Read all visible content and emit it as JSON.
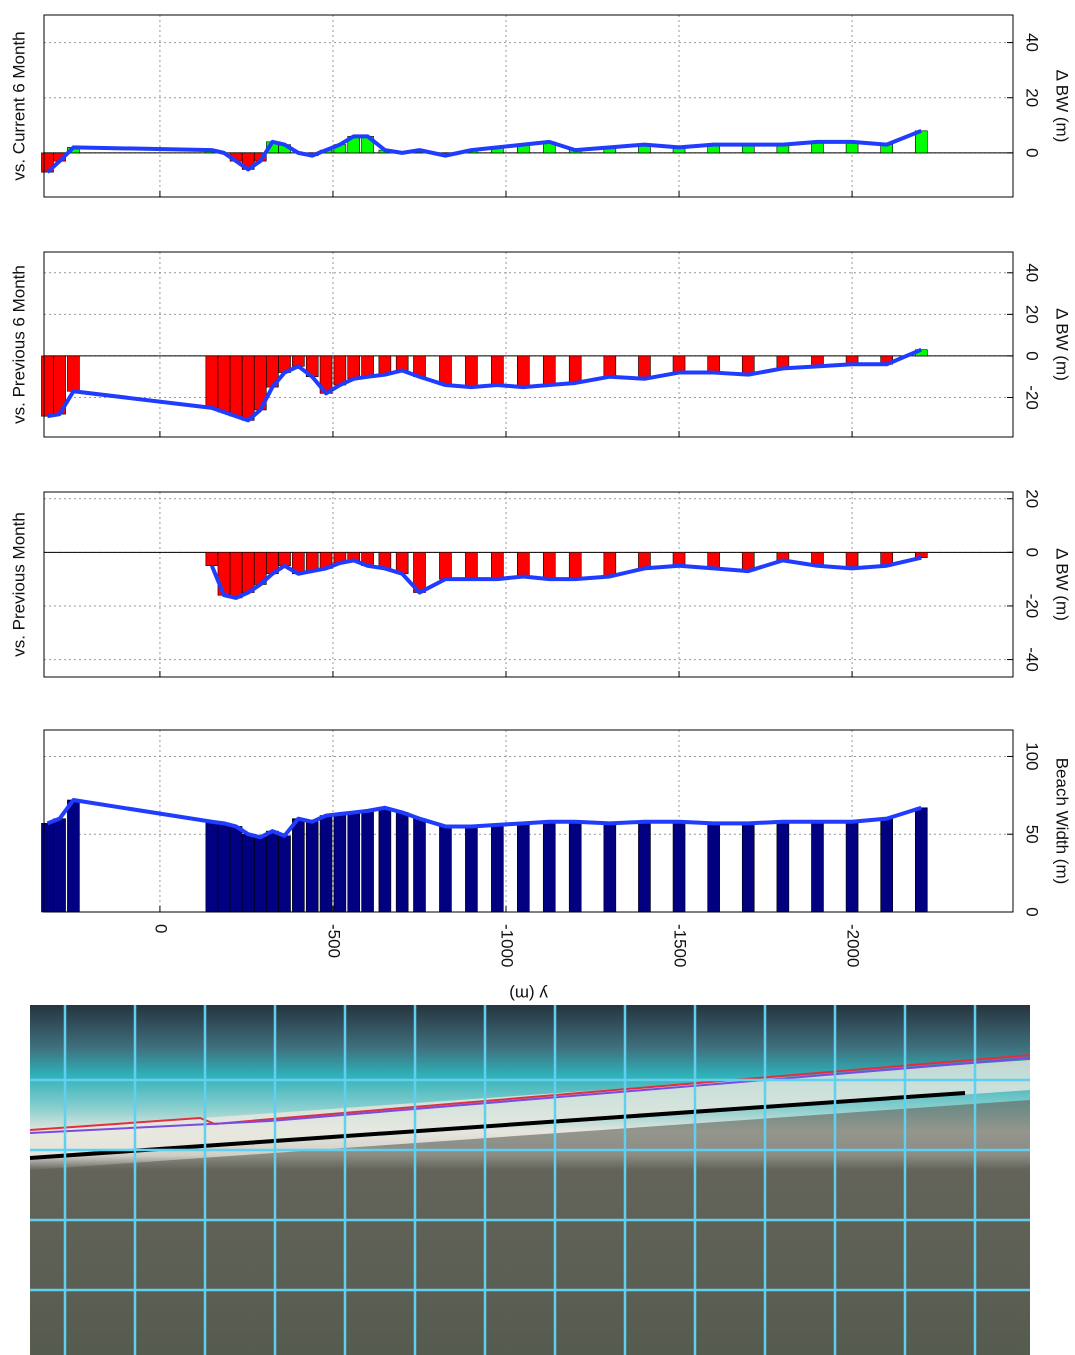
{
  "chart_data": [
    {
      "type": "bar",
      "title": "vs. Current 6 Month",
      "ylabel": "Δ BW (m)",
      "x": [
        325,
        290,
        250,
        -150,
        -185,
        -220,
        -255,
        -290,
        -325,
        -360,
        -400,
        -440,
        -480,
        -520,
        -560,
        -600,
        -650,
        -700,
        -750,
        -825,
        -900,
        -975,
        -1050,
        -1125,
        -1200,
        -1300,
        -1400,
        -1500,
        -1600,
        -1700,
        -1800,
        -1900,
        -2000,
        -2100,
        -2200
      ],
      "values": [
        -7,
        -3,
        2,
        1,
        0,
        -3,
        -6,
        -3,
        4,
        3,
        0,
        -1,
        1,
        3,
        6,
        6,
        1,
        0,
        1,
        -1,
        1,
        2,
        3,
        4,
        1,
        2,
        3,
        2,
        3,
        3,
        3,
        4,
        4,
        3,
        8
      ],
      "xlim": [
        335,
        -2465
      ],
      "xticks": [
        0,
        -500,
        -1000,
        -1500,
        -2000
      ],
      "ylim": [
        -16,
        50
      ],
      "yticks": [
        0,
        20,
        40
      ],
      "positive_color": "#00ff00",
      "negative_color": "#ff0000",
      "line_color": "#1f3cff",
      "grid": true
    },
    {
      "type": "bar",
      "title": "vs. Previous 6 Month",
      "ylabel": "Δ BW (m)",
      "x": [
        325,
        290,
        250,
        -150,
        -185,
        -220,
        -255,
        -290,
        -325,
        -360,
        -400,
        -440,
        -480,
        -520,
        -560,
        -600,
        -650,
        -700,
        -750,
        -825,
        -900,
        -975,
        -1050,
        -1125,
        -1200,
        -1300,
        -1400,
        -1500,
        -1600,
        -1700,
        -1800,
        -1900,
        -2000,
        -2100,
        -2200
      ],
      "values": [
        -29,
        -28,
        -17,
        -25,
        -27,
        -29,
        -31,
        -26,
        -15,
        -8,
        -5,
        -10,
        -18,
        -14,
        -11,
        -10,
        -9,
        -7,
        -10,
        -14,
        -15,
        -14,
        -15,
        -14,
        -13,
        -10,
        -11,
        -8,
        -8,
        -9,
        -6,
        -5,
        -4,
        -4,
        3
      ],
      "xlim": [
        335,
        -2465
      ],
      "xticks": [
        0,
        -500,
        -1000,
        -1500,
        -2000
      ],
      "ylim": [
        -39,
        50
      ],
      "yticks": [
        -20,
        0,
        20,
        40
      ],
      "positive_color": "#00ff00",
      "negative_color": "#ff0000",
      "line_color": "#1f3cff",
      "grid": true
    },
    {
      "type": "bar",
      "title": "vs. Previous Month",
      "ylabel": "Δ BW (m)",
      "x": [
        325,
        290,
        250,
        -150,
        -185,
        -220,
        -255,
        -290,
        -325,
        -360,
        -400,
        -440,
        -480,
        -520,
        -560,
        -600,
        -650,
        -700,
        -750,
        -825,
        -900,
        -975,
        -1050,
        -1125,
        -1200,
        -1300,
        -1400,
        -1500,
        -1600,
        -1700,
        -1800,
        -1900,
        -2000,
        -2100,
        -2200
      ],
      "values": [
        null,
        null,
        null,
        -5,
        -16,
        -17,
        -15,
        -12,
        -8,
        -5,
        -8,
        -7,
        -6,
        -4,
        -3,
        -5,
        -6,
        -8,
        -15,
        -10,
        -10,
        -10,
        -9,
        -10,
        -10,
        -9,
        -6,
        -5,
        -6,
        -7,
        -3,
        -5,
        -6,
        -5,
        -2
      ],
      "xlim": [
        335,
        -2465
      ],
      "xticks": [
        0,
        -500,
        -1000,
        -1500,
        -2000
      ],
      "ylim": [
        -46.5,
        22.5
      ],
      "yticks": [
        -40,
        -20,
        0,
        20
      ],
      "positive_color": "#00ff00",
      "negative_color": "#ff0000",
      "line_color": "#1f3cff",
      "grid": true
    },
    {
      "type": "bar",
      "ylabel": "Beach Width  (m)",
      "xlabel": "y (m)",
      "x": [
        325,
        290,
        250,
        -150,
        -185,
        -220,
        -255,
        -290,
        -325,
        -360,
        -400,
        -440,
        -480,
        -520,
        -560,
        -600,
        -650,
        -700,
        -750,
        -825,
        -900,
        -975,
        -1050,
        -1125,
        -1200,
        -1300,
        -1400,
        -1500,
        -1600,
        -1700,
        -1800,
        -1900,
        -2000,
        -2100,
        -2200
      ],
      "values": [
        57,
        60,
        72,
        58,
        57,
        55,
        50,
        48,
        52,
        49,
        60,
        58,
        62,
        63,
        64,
        65,
        67,
        64,
        60,
        55,
        55,
        56,
        57,
        58,
        58,
        57,
        58,
        58,
        57,
        57,
        58,
        58,
        58,
        60,
        67
      ],
      "xlim": [
        335,
        -2465
      ],
      "xticks": [
        0,
        -500,
        -1000,
        -1500,
        -2000
      ],
      "ylim": [
        0,
        117
      ],
      "yticks": [
        0,
        50,
        100
      ],
      "positive_color": "#000080",
      "negative_color": "#000080",
      "line_color": "#1f3cff",
      "grid": true
    }
  ]
}
